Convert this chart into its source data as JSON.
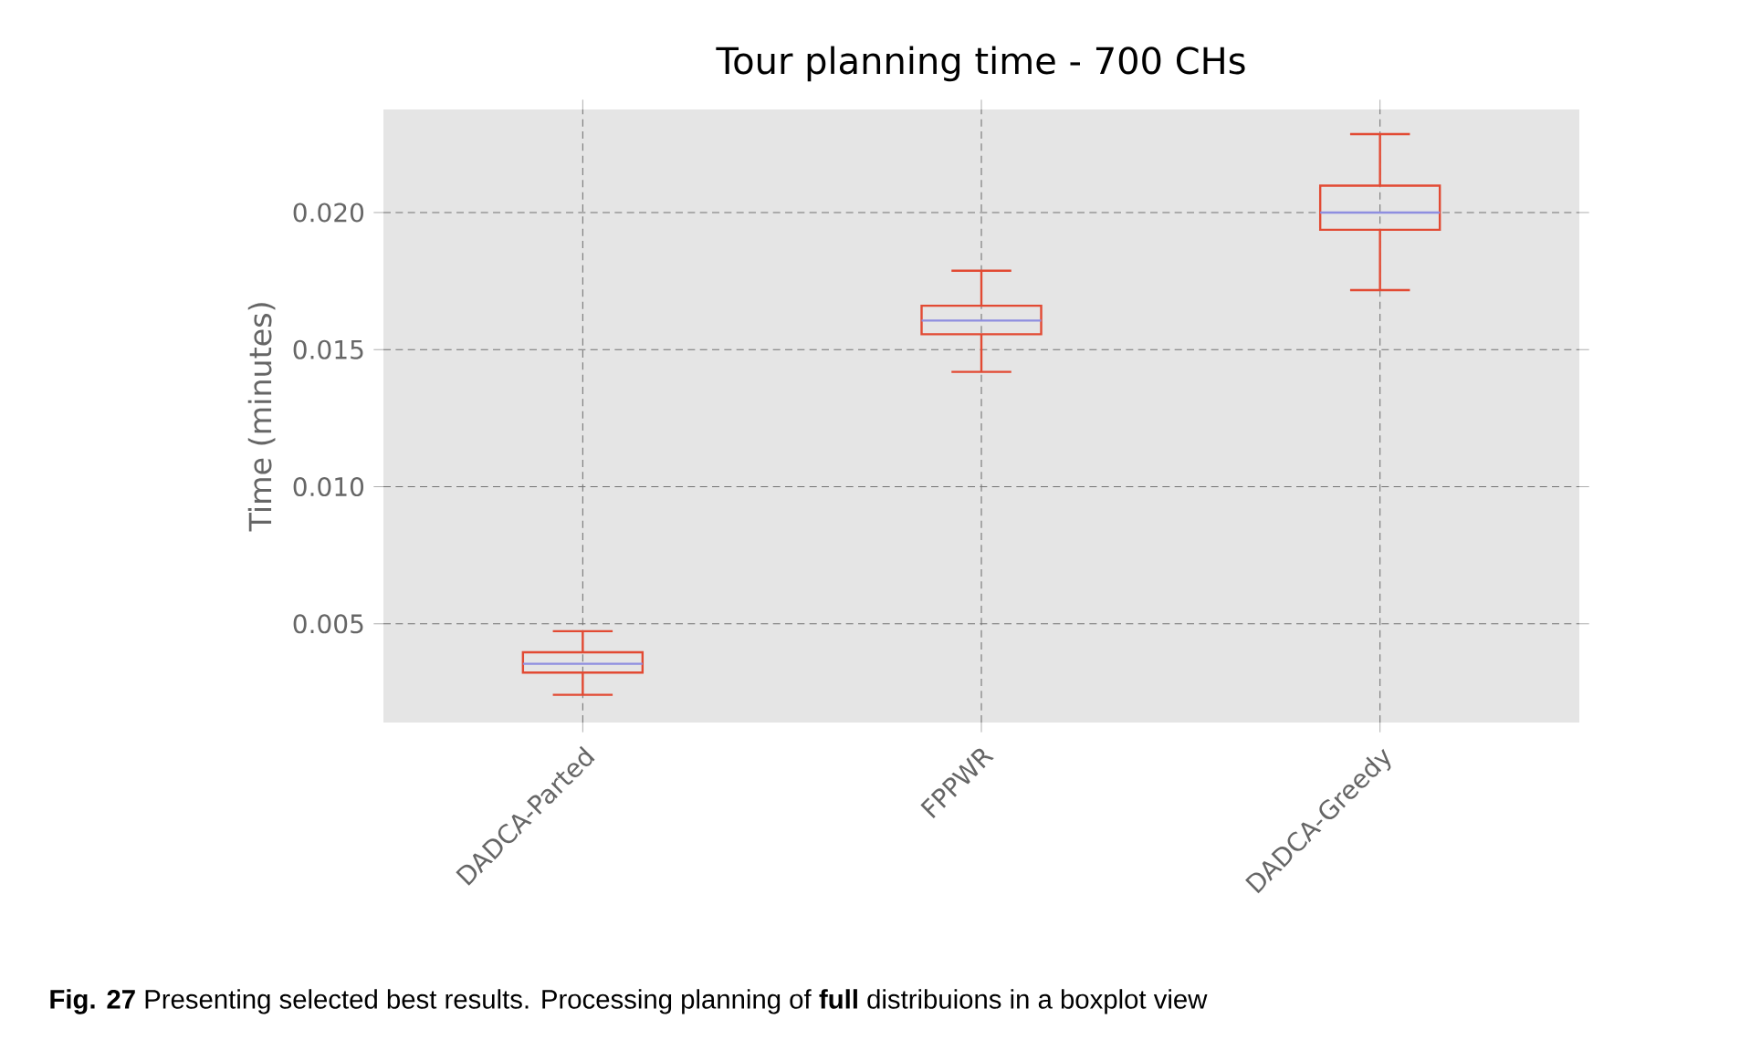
{
  "chart_data": {
    "type": "box",
    "title": "Tour planning time - 700 CHs",
    "ylabel": "Time (minutes)",
    "categories": [
      "DADCA-Parted",
      "FPPWR",
      "DADCA-Greedy"
    ],
    "boxes": [
      {
        "low": 0.00241,
        "q1": 0.00322,
        "median": 0.00354,
        "q3": 0.00396,
        "high": 0.00473
      },
      {
        "low": 0.01419,
        "q1": 0.01556,
        "median": 0.01606,
        "q3": 0.0166,
        "high": 0.01788
      },
      {
        "low": 0.01717,
        "q1": 0.01937,
        "median": 0.02,
        "q3": 0.02098,
        "high": 0.02286
      }
    ],
    "color": "#e24a33",
    "ylim": [
      0.0014,
      0.02376
    ],
    "yticks": [
      {
        "value": 0.005,
        "label": "0.005"
      },
      {
        "value": 0.01,
        "label": "0.010"
      },
      {
        "value": 0.015,
        "label": "0.015"
      },
      {
        "value": 0.02,
        "label": "0.020"
      }
    ],
    "grid": true,
    "annotations": [
      "**Fig. 27**  Presenting selected best results. Processing planning of **full** distribuions in a boxplot view"
    ]
  }
}
